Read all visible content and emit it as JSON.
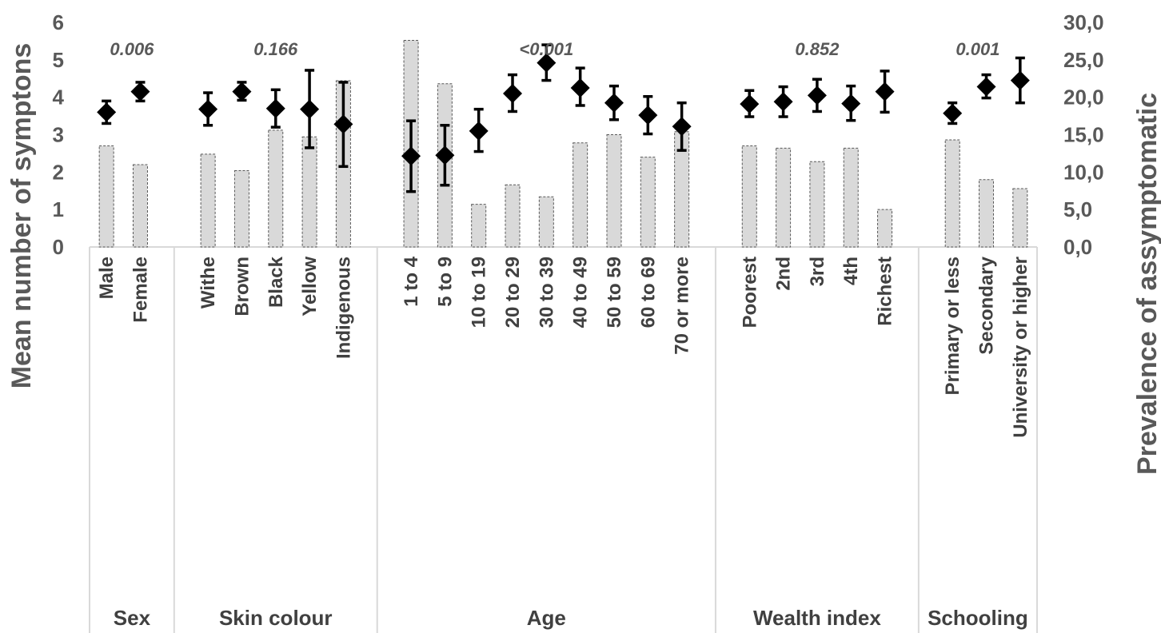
{
  "chart_data": {
    "type": "bar",
    "ylabel": "Mean number of symptons",
    "y2label": "Prevalence of assymptomatic",
    "ylim": [
      0,
      6
    ],
    "y2lim": [
      0,
      30
    ],
    "yticks": [
      "0",
      "1",
      "2",
      "3",
      "4",
      "5",
      "6"
    ],
    "y2ticks": [
      "0,0",
      "5,0",
      "10,0",
      "15,0",
      "20,0",
      "25,0",
      "30,0"
    ],
    "groups": [
      {
        "name": "Sex",
        "pvalue": "0.006",
        "categories": [
          "Male",
          "Female"
        ],
        "prevalence": [
          13.5,
          11.0
        ],
        "mean": [
          3.6,
          4.15
        ],
        "ci_low": [
          3.3,
          3.9
        ],
        "ci_high": [
          3.9,
          4.4
        ]
      },
      {
        "name": "Skin colour",
        "pvalue": "0.166",
        "categories": [
          "Withe",
          "Brown",
          "Black",
          "Yellow",
          "Indigenous"
        ],
        "prevalence": [
          12.4,
          10.2,
          15.6,
          14.7,
          22.2
        ],
        "mean": [
          3.68,
          4.15,
          3.7,
          3.68,
          3.28
        ],
        "ci_low": [
          3.25,
          3.92,
          3.2,
          2.65,
          2.15
        ],
        "ci_high": [
          4.12,
          4.4,
          4.2,
          4.72,
          4.4
        ]
      },
      {
        "name": "Age",
        "pvalue": "<0.001",
        "categories": [
          "1 to 4",
          "5 to 9",
          "10 to 19",
          "20 to 29",
          "30 to 39",
          "40 to 49",
          "50 to 59",
          "60 to 69",
          "70 or more"
        ],
        "prevalence": [
          27.6,
          21.8,
          5.7,
          8.3,
          6.7,
          13.9,
          15.0,
          12.0,
          15.4
        ],
        "mean": [
          2.43,
          2.45,
          3.1,
          4.1,
          4.92,
          4.25,
          3.85,
          3.52,
          3.22
        ],
        "ci_low": [
          1.48,
          1.65,
          2.55,
          3.62,
          4.45,
          3.78,
          3.4,
          3.02,
          2.58
        ],
        "ci_high": [
          3.37,
          3.25,
          3.68,
          4.6,
          5.4,
          4.78,
          4.3,
          4.02,
          3.85
        ]
      },
      {
        "name": "Wealth index",
        "pvalue": "0.852",
        "categories": [
          "Poorest",
          "2nd",
          "3rd",
          "4th",
          "Richest"
        ],
        "prevalence": [
          13.5,
          13.2,
          11.4,
          13.2,
          5.0
        ],
        "mean": [
          3.82,
          3.88,
          4.05,
          3.83,
          4.15
        ],
        "ci_low": [
          3.48,
          3.48,
          3.62,
          3.38,
          3.6
        ],
        "ci_high": [
          4.18,
          4.28,
          4.48,
          4.3,
          4.7
        ]
      },
      {
        "name": "Schooling",
        "pvalue": "0.001",
        "categories": [
          "Primary or less",
          "Secondary",
          "University or higher"
        ],
        "prevalence": [
          14.3,
          9.0,
          7.8
        ],
        "mean": [
          3.57,
          4.28,
          4.45
        ],
        "ci_low": [
          3.3,
          3.98,
          3.85
        ],
        "ci_high": [
          3.85,
          4.6,
          5.05
        ]
      }
    ],
    "colors": {
      "bar_fill": "#d9d9d9",
      "bar_stroke": "#595959",
      "marker": "#000000",
      "grid": "#d9d9d9",
      "axis_text": "#595959",
      "label_text": "#404040"
    }
  }
}
